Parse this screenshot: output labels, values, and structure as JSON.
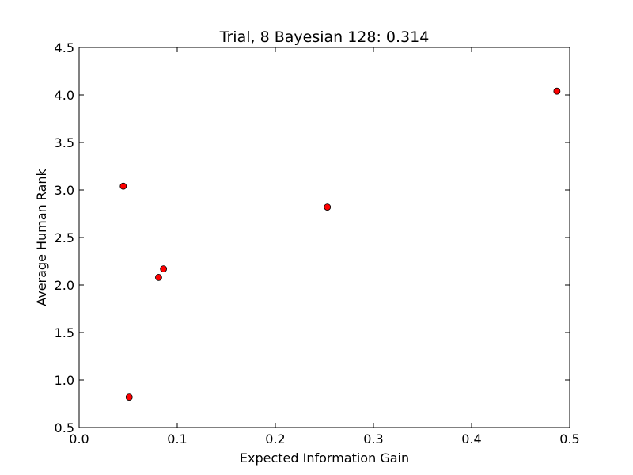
{
  "chart_data": {
    "type": "scatter",
    "title": "Trial, 8 Bayesian 128: 0.314",
    "xlabel": "Expected Information Gain",
    "ylabel": "Average Human Rank",
    "xlim": [
      0.0,
      0.5
    ],
    "ylim": [
      0.5,
      4.5
    ],
    "x_ticks": [
      0.0,
      0.1,
      0.2,
      0.3,
      0.4,
      0.5
    ],
    "x_tick_labels": [
      "0.0",
      "0.1",
      "0.2",
      "0.3",
      "0.4",
      "0.5"
    ],
    "y_ticks": [
      0.5,
      1.0,
      1.5,
      2.0,
      2.5,
      3.0,
      3.5,
      4.0,
      4.5
    ],
    "y_tick_labels": [
      "0.5",
      "1.0",
      "1.5",
      "2.0",
      "2.5",
      "3.0",
      "3.5",
      "4.0",
      "4.5"
    ],
    "grid": false,
    "marker_color": "#ff0000",
    "marker_edge_color": "#000000",
    "points": [
      {
        "x": 0.045,
        "y": 3.04
      },
      {
        "x": 0.051,
        "y": 0.82
      },
      {
        "x": 0.081,
        "y": 2.08
      },
      {
        "x": 0.086,
        "y": 2.17
      },
      {
        "x": 0.253,
        "y": 2.82
      },
      {
        "x": 0.487,
        "y": 4.04
      }
    ]
  }
}
